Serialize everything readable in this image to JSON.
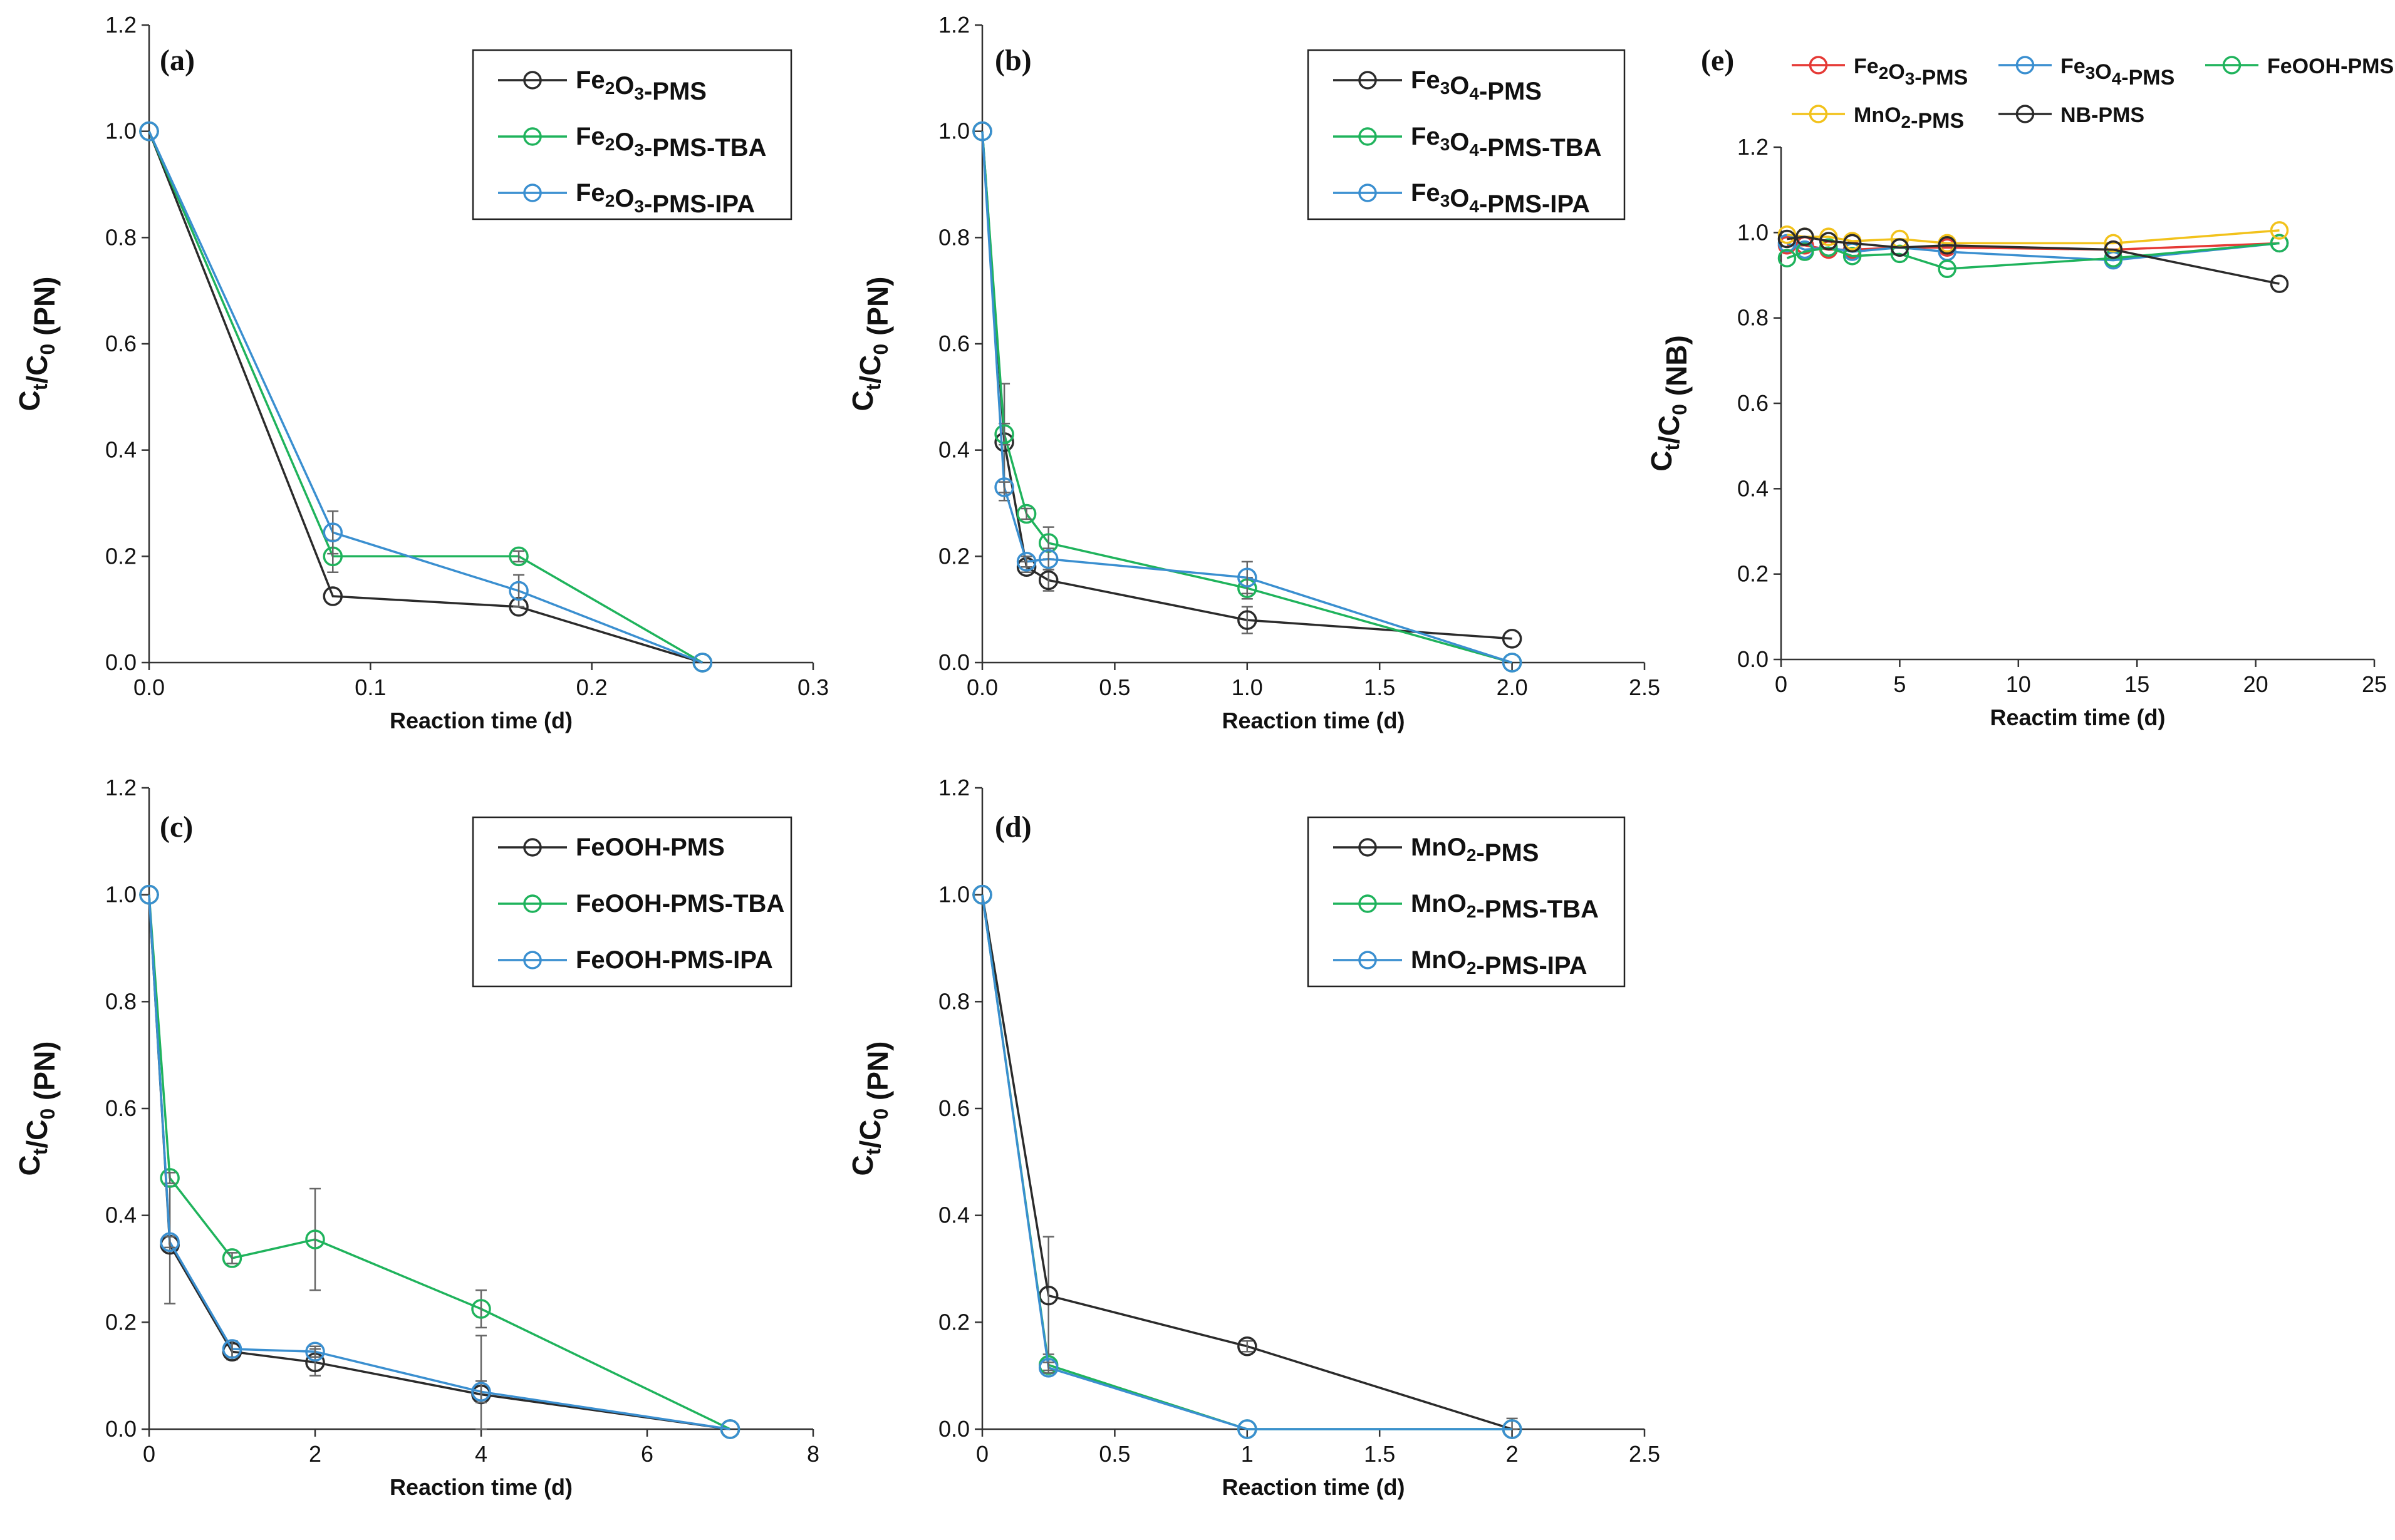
{
  "colors": {
    "black": "#2b2b2b",
    "green": "#1fb35c",
    "blue": "#3a8fd0",
    "red": "#e53935",
    "yellow": "#f2c21b",
    "errorbar": "#666666"
  },
  "chart_data": [
    {
      "id": "a",
      "type": "line",
      "panel_label": "(a)",
      "xlabel": "Reaction time (d)",
      "ylabel": {
        "main": "C",
        "s1": "t",
        "mid": "/C",
        "s2": "0",
        "tail": " (PN)"
      },
      "xlim": [
        0,
        0.3
      ],
      "ylim": [
        0,
        1.2
      ],
      "xticks": [
        0,
        0.1,
        0.2,
        0.3
      ],
      "xtick_labels": [
        "0.0",
        "0.1",
        "0.2",
        "0.3"
      ],
      "yticks": [
        0,
        0.2,
        0.4,
        0.6,
        0.8,
        1.0,
        1.2
      ],
      "ytick_labels": [
        "0.0",
        "0.2",
        "0.4",
        "0.6",
        "0.8",
        "1.0",
        "1.2"
      ],
      "legend_position": "top-right",
      "series": [
        {
          "name": "Fe2O3-PMS",
          "name_parts": [
            [
              "Fe",
              ""
            ],
            [
              "2",
              "sub"
            ],
            [
              "O",
              ""
            ],
            [
              "3",
              "sub"
            ],
            [
              "-PMS",
              ""
            ]
          ],
          "color": "black",
          "x": [
            0,
            0.083,
            0.167,
            0.25
          ],
          "y": [
            1.0,
            0.125,
            0.105,
            0.0
          ],
          "err": [
            0,
            0,
            0,
            0
          ]
        },
        {
          "name": "Fe2O3-PMS-TBA",
          "name_parts": [
            [
              "Fe",
              ""
            ],
            [
              "2",
              "sub"
            ],
            [
              "O",
              ""
            ],
            [
              "3",
              "sub"
            ],
            [
              "-PMS-TBA",
              ""
            ]
          ],
          "color": "green",
          "x": [
            0,
            0.083,
            0.167,
            0.25
          ],
          "y": [
            1.0,
            0.2,
            0.2,
            0.0
          ],
          "err": [
            0,
            0.03,
            0.01,
            0
          ]
        },
        {
          "name": "Fe2O3-PMS-IPA",
          "name_parts": [
            [
              "Fe",
              ""
            ],
            [
              "2",
              "sub"
            ],
            [
              "O",
              ""
            ],
            [
              "3",
              "sub"
            ],
            [
              "-PMS-IPA",
              ""
            ]
          ],
          "color": "blue",
          "x": [
            0,
            0.083,
            0.167,
            0.25
          ],
          "y": [
            1.0,
            0.245,
            0.135,
            0.0
          ],
          "err": [
            0,
            0.04,
            0.03,
            0
          ]
        }
      ]
    },
    {
      "id": "b",
      "type": "line",
      "panel_label": "(b)",
      "xlabel": "Reaction time (d)",
      "ylabel": {
        "main": "C",
        "s1": "t",
        "mid": "/C",
        "s2": "0",
        "tail": " (PN)"
      },
      "xlim": [
        0,
        2.5
      ],
      "ylim": [
        0,
        1.2
      ],
      "xticks": [
        0,
        0.5,
        1.0,
        1.5,
        2.0,
        2.5
      ],
      "xtick_labels": [
        "0.0",
        "0.5",
        "1.0",
        "1.5",
        "2.0",
        "2.5"
      ],
      "yticks": [
        0,
        0.2,
        0.4,
        0.6,
        0.8,
        1.0,
        1.2
      ],
      "ytick_labels": [
        "0.0",
        "0.2",
        "0.4",
        "0.6",
        "0.8",
        "1.0",
        "1.2"
      ],
      "legend_position": "top-right",
      "series": [
        {
          "name": "Fe3O4-PMS",
          "name_parts": [
            [
              "Fe",
              ""
            ],
            [
              "3",
              "sub"
            ],
            [
              "O",
              ""
            ],
            [
              "4",
              "sub"
            ],
            [
              "-PMS",
              ""
            ]
          ],
          "color": "black",
          "x": [
            0,
            0.083,
            0.167,
            0.25,
            1.0,
            2.0
          ],
          "y": [
            1.0,
            0.415,
            0.18,
            0.155,
            0.08,
            0.045
          ],
          "err": [
            0,
            0.11,
            0.01,
            0.02,
            0.025,
            0
          ]
        },
        {
          "name": "Fe3O4-PMS-TBA",
          "name_parts": [
            [
              "Fe",
              ""
            ],
            [
              "3",
              "sub"
            ],
            [
              "O",
              ""
            ],
            [
              "4",
              "sub"
            ],
            [
              "-PMS-TBA",
              ""
            ]
          ],
          "color": "green",
          "x": [
            0,
            0.083,
            0.167,
            0.25,
            1.0,
            2.0
          ],
          "y": [
            1.0,
            0.43,
            0.28,
            0.225,
            0.14,
            0.0
          ],
          "err": [
            0,
            0.02,
            0.01,
            0.03,
            0.02,
            0
          ]
        },
        {
          "name": "Fe3O4-PMS-IPA",
          "name_parts": [
            [
              "Fe",
              ""
            ],
            [
              "3",
              "sub"
            ],
            [
              "O",
              ""
            ],
            [
              "4",
              "sub"
            ],
            [
              "-PMS-IPA",
              ""
            ]
          ],
          "color": "blue",
          "x": [
            0,
            0.083,
            0.167,
            0.25,
            1.0,
            2.0
          ],
          "y": [
            1.0,
            0.33,
            0.19,
            0.195,
            0.16,
            0.0
          ],
          "err": [
            0,
            0.01,
            0.01,
            0.02,
            0.03,
            0
          ]
        }
      ]
    },
    {
      "id": "c",
      "type": "line",
      "panel_label": "(c)",
      "xlabel": "Reaction time (d)",
      "ylabel": {
        "main": "C",
        "s1": "t",
        "mid": "/C",
        "s2": "0",
        "tail": " (PN)"
      },
      "xlim": [
        0,
        8
      ],
      "ylim": [
        0,
        1.2
      ],
      "xticks": [
        0,
        2,
        4,
        6,
        8
      ],
      "xtick_labels": [
        "0",
        "2",
        "4",
        "6",
        "8"
      ],
      "yticks": [
        0,
        0.2,
        0.4,
        0.6,
        0.8,
        1.0,
        1.2
      ],
      "ytick_labels": [
        "0.0",
        "0.2",
        "0.4",
        "0.6",
        "0.8",
        "1.0",
        "1.2"
      ],
      "legend_position": "top-right",
      "series": [
        {
          "name": "FeOOH-PMS",
          "name_parts": [
            [
              "FeOOH-PMS",
              ""
            ]
          ],
          "color": "black",
          "x": [
            0,
            0.25,
            1,
            2,
            4,
            7
          ],
          "y": [
            1.0,
            0.345,
            0.145,
            0.125,
            0.065,
            0.0
          ],
          "err": [
            0,
            0.11,
            0.015,
            0.025,
            0.11,
            0
          ]
        },
        {
          "name": "FeOOH-PMS-TBA",
          "name_parts": [
            [
              "FeOOH-PMS-TBA",
              ""
            ]
          ],
          "color": "green",
          "x": [
            0,
            0.25,
            1,
            2,
            4,
            7
          ],
          "y": [
            1.0,
            0.47,
            0.32,
            0.355,
            0.225,
            0.0
          ],
          "err": [
            0,
            0.01,
            0.01,
            0.095,
            0.035,
            0
          ]
        },
        {
          "name": "FeOOH-PMS-IPA",
          "name_parts": [
            [
              "FeOOH-PMS-IPA",
              ""
            ]
          ],
          "color": "blue",
          "x": [
            0,
            0.25,
            1,
            2,
            4,
            7
          ],
          "y": [
            1.0,
            0.35,
            0.15,
            0.145,
            0.07,
            0.0
          ],
          "err": [
            0,
            0.01,
            0.015,
            0.01,
            0.02,
            0
          ]
        }
      ]
    },
    {
      "id": "d",
      "type": "line",
      "panel_label": "(d)",
      "xlabel": "Reaction time (d)",
      "ylabel": {
        "main": "C",
        "s1": "t",
        "mid": "/C",
        "s2": "0",
        "tail": " (PN)"
      },
      "xlim": [
        0,
        2.5
      ],
      "ylim": [
        0,
        1.2
      ],
      "xticks": [
        0,
        0.5,
        1,
        1.5,
        2,
        2.5
      ],
      "xtick_labels": [
        "0",
        "0.5",
        "1",
        "1.5",
        "2",
        "2.5"
      ],
      "yticks": [
        0,
        0.2,
        0.4,
        0.6,
        0.8,
        1.0,
        1.2
      ],
      "ytick_labels": [
        "0.0",
        "0.2",
        "0.4",
        "0.6",
        "0.8",
        "1.0",
        "1.2"
      ],
      "legend_position": "top-right",
      "series": [
        {
          "name": "MnO2-PMS",
          "name_parts": [
            [
              "MnO",
              ""
            ],
            [
              "2",
              "sub"
            ],
            [
              "-PMS",
              ""
            ]
          ],
          "color": "black",
          "x": [
            0,
            0.25,
            1,
            2
          ],
          "y": [
            1.0,
            0.25,
            0.155,
            0.0
          ],
          "err": [
            0,
            0.11,
            0.01,
            0.02
          ]
        },
        {
          "name": "MnO2-PMS-TBA",
          "name_parts": [
            [
              "MnO",
              ""
            ],
            [
              "2",
              "sub"
            ],
            [
              "-PMS-TBA",
              ""
            ]
          ],
          "color": "green",
          "x": [
            0,
            0.25,
            1,
            2
          ],
          "y": [
            1.0,
            0.12,
            0.0,
            0.0
          ],
          "err": [
            0,
            0.01,
            0,
            0
          ]
        },
        {
          "name": "MnO2-PMS-IPA",
          "name_parts": [
            [
              "MnO",
              ""
            ],
            [
              "2",
              "sub"
            ],
            [
              "-PMS-IPA",
              ""
            ]
          ],
          "color": "blue",
          "x": [
            0,
            0.25,
            1,
            2
          ],
          "y": [
            1.0,
            0.115,
            0.0,
            0.0
          ],
          "err": [
            0,
            0.01,
            0,
            0
          ]
        }
      ]
    },
    {
      "id": "e",
      "type": "line",
      "panel_label": "(e)",
      "xlabel": "Reactim time (d)",
      "ylabel": {
        "main": "C",
        "s1": "t",
        "mid": "/C",
        "s2": "0",
        "tail": " (NB)"
      },
      "xlim": [
        0,
        25
      ],
      "ylim": [
        0,
        1.2
      ],
      "xticks": [
        0,
        5,
        10,
        15,
        20,
        25
      ],
      "xtick_labels": [
        "0",
        "5",
        "10",
        "15",
        "20",
        "25"
      ],
      "yticks": [
        0,
        0.2,
        0.4,
        0.6,
        0.8,
        1.0,
        1.2
      ],
      "ytick_labels": [
        "0.0",
        "0.2",
        "0.4",
        "0.6",
        "0.8",
        "1.0",
        "1.2"
      ],
      "legend_position": "top",
      "series": [
        {
          "name": "Fe2O3-PMS",
          "name_parts": [
            [
              "Fe",
              ""
            ],
            [
              "2",
              "sub"
            ],
            [
              "O",
              ""
            ],
            [
              "3",
              "sub"
            ],
            [
              "-PMS",
              ""
            ]
          ],
          "color": "red",
          "x": [
            0.25,
            1,
            2,
            3,
            5,
            7,
            14,
            21
          ],
          "y": [
            0.97,
            0.97,
            0.96,
            0.96,
            0.965,
            0.965,
            0.96,
            0.975
          ],
          "err": [
            0,
            0,
            0,
            0,
            0,
            0,
            0,
            0
          ]
        },
        {
          "name": "Fe3O4-PMS",
          "name_parts": [
            [
              "Fe",
              ""
            ],
            [
              "3",
              "sub"
            ],
            [
              "O",
              ""
            ],
            [
              "4",
              "sub"
            ],
            [
              "-PMS",
              ""
            ]
          ],
          "color": "blue",
          "x": [
            0.25,
            1,
            2,
            3,
            5,
            7,
            14,
            21
          ],
          "y": [
            0.975,
            0.96,
            0.965,
            0.955,
            0.965,
            0.955,
            0.935,
            0.975
          ],
          "err": [
            0,
            0,
            0,
            0,
            0,
            0,
            0,
            0
          ]
        },
        {
          "name": "FeOOH-PMS",
          "name_parts": [
            [
              "FeOOH-PMS",
              ""
            ]
          ],
          "color": "green",
          "x": [
            0.25,
            1,
            2,
            3,
            5,
            7,
            14,
            21
          ],
          "y": [
            0.94,
            0.955,
            0.965,
            0.945,
            0.95,
            0.915,
            0.94,
            0.975
          ],
          "err": [
            0,
            0,
            0,
            0,
            0,
            0,
            0,
            0
          ]
        },
        {
          "name": "MnO2-PMS",
          "name_parts": [
            [
              "MnO",
              ""
            ],
            [
              "2",
              "sub"
            ],
            [
              "-PMS",
              ""
            ]
          ],
          "color": "yellow",
          "x": [
            0.25,
            1,
            2,
            3,
            5,
            7,
            14,
            21
          ],
          "y": [
            0.995,
            0.99,
            0.99,
            0.98,
            0.985,
            0.975,
            0.975,
            1.005
          ],
          "err": [
            0,
            0,
            0,
            0,
            0,
            0,
            0,
            0
          ]
        },
        {
          "name": "NB-PMS",
          "name_parts": [
            [
              "NB-PMS",
              ""
            ]
          ],
          "color": "black",
          "x": [
            0.25,
            1,
            2,
            3,
            5,
            7,
            14,
            21
          ],
          "y": [
            0.985,
            0.99,
            0.98,
            0.975,
            0.965,
            0.97,
            0.96,
            0.88
          ],
          "err": [
            0,
            0,
            0,
            0,
            0,
            0,
            0,
            0
          ]
        }
      ]
    }
  ]
}
